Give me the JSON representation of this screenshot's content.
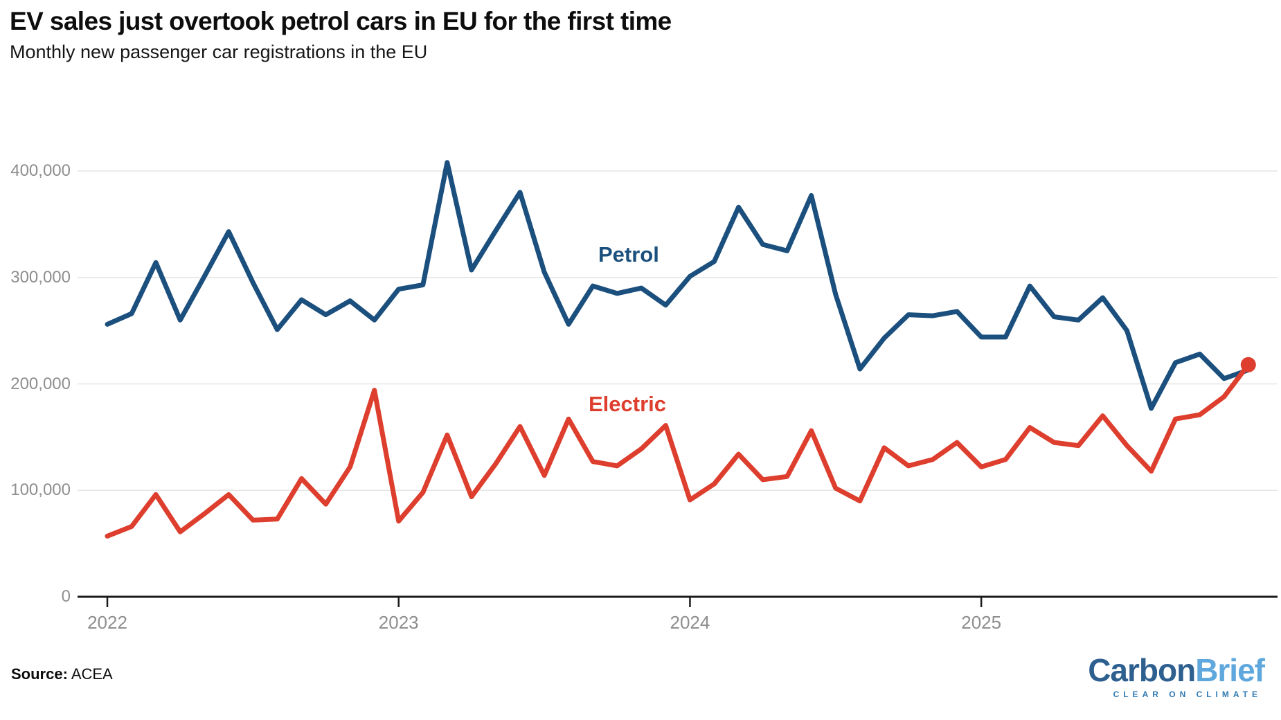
{
  "header": {
    "title": "EV sales just overtook petrol cars in EU for the first time",
    "subtitle": "Monthly new passenger car registrations in the EU"
  },
  "footer": {
    "source_label": "Source:",
    "source_value": " ACEA"
  },
  "logo": {
    "part1": "Carbon",
    "part2": "Brief",
    "tagline": "CLEAR ON CLIMATE",
    "part1_color": "#2d5f8f",
    "part2_color": "#5fa8dd",
    "tagline_color": "#2f7ab3"
  },
  "chart_data": {
    "type": "line",
    "title": "EV sales just overtook petrol cars in EU for the first time",
    "subtitle": "Monthly new passenger car registrations in the EU",
    "x_unit": "month",
    "x_start": "2022-01",
    "x_end": "2025-12",
    "ylim": [
      0,
      420000
    ],
    "grid": "horizontal",
    "grid_values": [
      100000,
      200000,
      300000,
      400000
    ],
    "gridline_color": "#e5e5e5",
    "axis_color": "#1a1a1a",
    "tick_label_color": "#8e8e8e",
    "x_tick_labels": [
      "2022",
      "2023",
      "2024",
      "2025"
    ],
    "x_tick_month_index": [
      0,
      12,
      24,
      36
    ],
    "y_tick_labels": [
      "400,000",
      "300,000",
      "200,000",
      "100,000",
      "0"
    ],
    "y_tick_values": [
      400000,
      300000,
      200000,
      100000,
      0
    ],
    "months": [
      "2022-01",
      "2022-02",
      "2022-03",
      "2022-04",
      "2022-05",
      "2022-06",
      "2022-07",
      "2022-08",
      "2022-09",
      "2022-10",
      "2022-11",
      "2022-12",
      "2023-01",
      "2023-02",
      "2023-03",
      "2023-04",
      "2023-05",
      "2023-06",
      "2023-07",
      "2023-08",
      "2023-09",
      "2023-10",
      "2023-11",
      "2023-12",
      "2024-01",
      "2024-02",
      "2024-03",
      "2024-04",
      "2024-05",
      "2024-06",
      "2024-07",
      "2024-08",
      "2024-09",
      "2024-10",
      "2024-11",
      "2024-12",
      "2025-01",
      "2025-02",
      "2025-03",
      "2025-04",
      "2025-05",
      "2025-06",
      "2025-07",
      "2025-08",
      "2025-09",
      "2025-10",
      "2025-11",
      "2025-12"
    ],
    "series": [
      {
        "name": "Petrol",
        "color": "#1b4f7d",
        "end_dot": false,
        "values": [
          256000,
          266000,
          314000,
          260000,
          301000,
          343000,
          295000,
          251000,
          279000,
          265000,
          278000,
          260000,
          289000,
          293000,
          408000,
          307000,
          344000,
          380000,
          305000,
          256000,
          292000,
          285000,
          290000,
          274000,
          301000,
          315000,
          366000,
          331000,
          325000,
          377000,
          284000,
          214000,
          243000,
          265000,
          264000,
          268000,
          244000,
          244000,
          292000,
          263000,
          260000,
          281000,
          250000,
          177000,
          220000,
          228000,
          205000,
          213000
        ]
      },
      {
        "name": "Electric",
        "color": "#dd3e2d",
        "end_dot": true,
        "values": [
          57000,
          66000,
          96000,
          61000,
          78000,
          96000,
          72000,
          73000,
          111000,
          87000,
          122000,
          194000,
          71000,
          98000,
          152000,
          94000,
          125000,
          160000,
          114000,
          167000,
          127000,
          123000,
          139000,
          161000,
          91000,
          106000,
          134000,
          110000,
          113000,
          156000,
          102000,
          90000,
          140000,
          123000,
          129000,
          145000,
          122000,
          129000,
          159000,
          145000,
          142000,
          170000,
          142000,
          118000,
          167000,
          171000,
          188000,
          218000
        ]
      }
    ]
  }
}
